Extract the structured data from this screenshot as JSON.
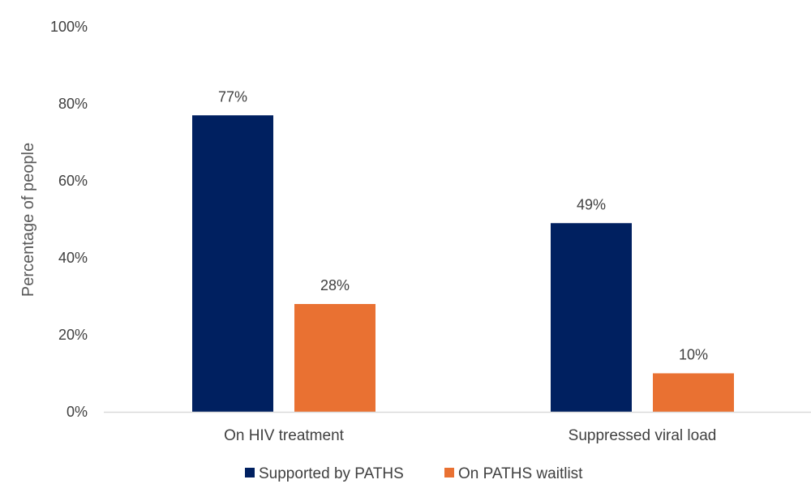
{
  "chart_data": {
    "type": "bar",
    "title": "",
    "xlabel": "",
    "ylabel": "Percentage of people",
    "ylim": [
      0,
      100
    ],
    "yticks": [
      "0%",
      "20%",
      "40%",
      "60%",
      "80%",
      "100%"
    ],
    "ytick_values": [
      0,
      20,
      40,
      60,
      80,
      100
    ],
    "categories": [
      "On HIV treatment",
      "Suppressed viral load"
    ],
    "series": [
      {
        "name": "Supported by PATHS",
        "values": [
          77,
          49
        ],
        "labels": [
          "77%",
          "49%"
        ],
        "color": "#002060"
      },
      {
        "name": "On PATHS waitlist",
        "values": [
          28,
          10
        ],
        "labels": [
          "28%",
          "10%"
        ],
        "color": "#E97132"
      }
    ],
    "grid": false,
    "legend_position": "bottom"
  }
}
